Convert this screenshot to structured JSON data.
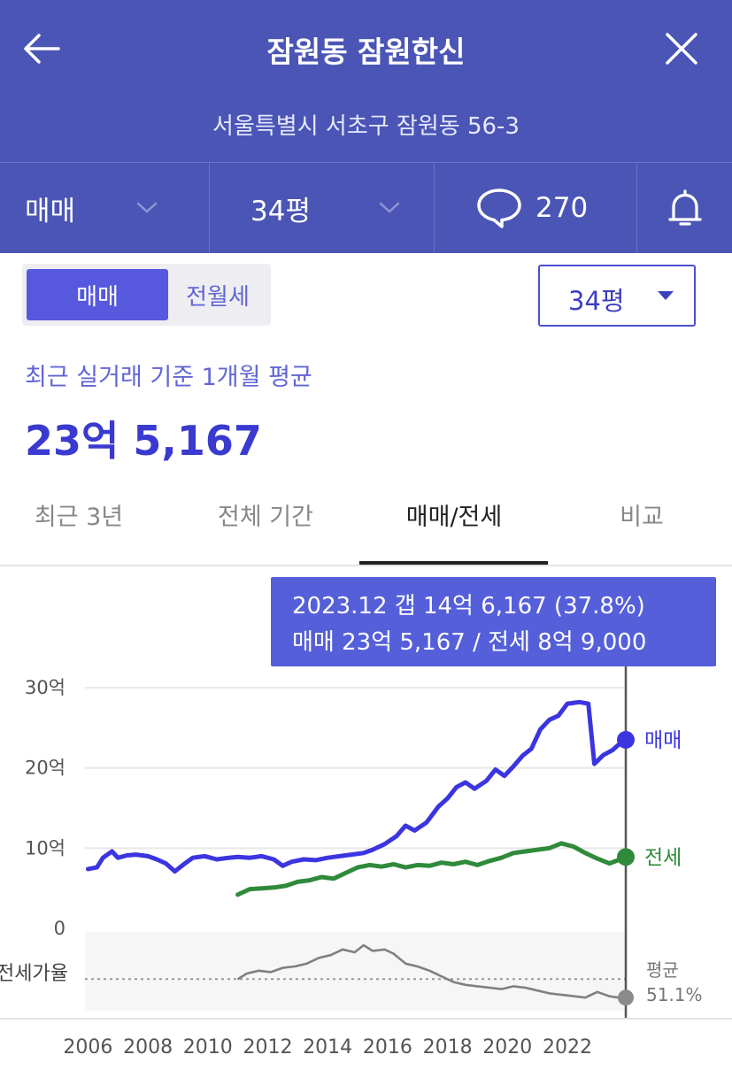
{
  "header": {
    "title": "잠원동 잠원한신",
    "address": "서울특별시 서초구 잠원동 56-3"
  },
  "filters": {
    "deal_type": "매매",
    "size": "34평",
    "comment_count": "270"
  },
  "segment": {
    "options": [
      "매매",
      "전월세"
    ],
    "selected": "매매"
  },
  "size_select": {
    "value": "34평"
  },
  "summary": {
    "label": "최근 실거래 기준 1개월 평균",
    "value": "23억 5,167"
  },
  "tabs": [
    {
      "label": "최근 3년",
      "active": false
    },
    {
      "label": "전체 기간",
      "active": false
    },
    {
      "label": "매매/전세",
      "active": true
    },
    {
      "label": "비교",
      "active": false
    }
  ],
  "tooltip": {
    "line1": "2023.12  갭 14억 6,167 (37.8%)",
    "line2": "매매 23억 5,167 / 전세 8억 9,000"
  },
  "chart_data": {
    "type": "line",
    "y_ticks": [
      {
        "value": 30,
        "label": "30억"
      },
      {
        "value": 20,
        "label": "20억"
      },
      {
        "value": 10,
        "label": "10억"
      },
      {
        "value": 0,
        "label": "0"
      }
    ],
    "ylim": [
      0,
      30
    ],
    "x_ticks": [
      "2006",
      "2008",
      "2010",
      "2012",
      "2014",
      "2016",
      "2018",
      "2020",
      "2022"
    ],
    "xlim": [
      2005.9,
      2023.95
    ],
    "grid": true,
    "cursor_x": 2023.95,
    "series": [
      {
        "name": "매매",
        "color": "#3b35e0",
        "points": [
          [
            2006.0,
            7.4
          ],
          [
            2006.3,
            7.6
          ],
          [
            2006.5,
            8.8
          ],
          [
            2006.8,
            9.6
          ],
          [
            2007.0,
            8.8
          ],
          [
            2007.3,
            9.1
          ],
          [
            2007.6,
            9.2
          ],
          [
            2008.0,
            9.0
          ],
          [
            2008.3,
            8.6
          ],
          [
            2008.6,
            8.1
          ],
          [
            2008.9,
            7.1
          ],
          [
            2009.2,
            8.0
          ],
          [
            2009.5,
            8.8
          ],
          [
            2009.9,
            9.0
          ],
          [
            2010.3,
            8.6
          ],
          [
            2010.7,
            8.8
          ],
          [
            2011.0,
            8.9
          ],
          [
            2011.4,
            8.8
          ],
          [
            2011.8,
            9.0
          ],
          [
            2012.2,
            8.6
          ],
          [
            2012.5,
            7.8
          ],
          [
            2012.8,
            8.3
          ],
          [
            2013.2,
            8.6
          ],
          [
            2013.6,
            8.5
          ],
          [
            2014.0,
            8.8
          ],
          [
            2014.4,
            9.0
          ],
          [
            2014.8,
            9.2
          ],
          [
            2015.2,
            9.4
          ],
          [
            2015.5,
            9.8
          ],
          [
            2015.9,
            10.5
          ],
          [
            2016.3,
            11.5
          ],
          [
            2016.6,
            12.8
          ],
          [
            2016.9,
            12.2
          ],
          [
            2017.3,
            13.2
          ],
          [
            2017.7,
            15.2
          ],
          [
            2018.0,
            16.2
          ],
          [
            2018.3,
            17.6
          ],
          [
            2018.6,
            18.2
          ],
          [
            2018.9,
            17.4
          ],
          [
            2019.3,
            18.4
          ],
          [
            2019.6,
            19.8
          ],
          [
            2019.9,
            19.0
          ],
          [
            2020.2,
            20.2
          ],
          [
            2020.5,
            21.5
          ],
          [
            2020.8,
            22.4
          ],
          [
            2021.1,
            24.8
          ],
          [
            2021.4,
            26.0
          ],
          [
            2021.7,
            26.5
          ],
          [
            2022.0,
            28.0
          ],
          [
            2022.4,
            28.2
          ],
          [
            2022.7,
            28.0
          ],
          [
            2022.9,
            20.5
          ],
          [
            2023.2,
            21.6
          ],
          [
            2023.5,
            22.2
          ],
          [
            2023.8,
            23.2
          ],
          [
            2023.95,
            23.5
          ]
        ]
      },
      {
        "name": "전세",
        "color": "#2f8a3b",
        "points": [
          [
            2011.0,
            4.2
          ],
          [
            2011.4,
            4.9
          ],
          [
            2011.8,
            5.0
          ],
          [
            2012.2,
            5.1
          ],
          [
            2012.6,
            5.3
          ],
          [
            2013.0,
            5.8
          ],
          [
            2013.4,
            6.0
          ],
          [
            2013.8,
            6.4
          ],
          [
            2014.2,
            6.2
          ],
          [
            2014.6,
            6.9
          ],
          [
            2015.0,
            7.6
          ],
          [
            2015.4,
            7.9
          ],
          [
            2015.8,
            7.7
          ],
          [
            2016.2,
            8.0
          ],
          [
            2016.6,
            7.6
          ],
          [
            2017.0,
            7.9
          ],
          [
            2017.4,
            7.8
          ],
          [
            2017.8,
            8.2
          ],
          [
            2018.2,
            8.0
          ],
          [
            2018.6,
            8.3
          ],
          [
            2019.0,
            7.9
          ],
          [
            2019.4,
            8.4
          ],
          [
            2019.8,
            8.8
          ],
          [
            2020.2,
            9.4
          ],
          [
            2020.6,
            9.6
          ],
          [
            2021.0,
            9.8
          ],
          [
            2021.4,
            10.0
          ],
          [
            2021.8,
            10.6
          ],
          [
            2022.2,
            10.2
          ],
          [
            2022.6,
            9.4
          ],
          [
            2023.0,
            8.7
          ],
          [
            2023.4,
            8.1
          ],
          [
            2023.7,
            8.5
          ],
          [
            2023.95,
            8.9
          ]
        ]
      }
    ],
    "ratio": {
      "label": "전세가율",
      "avg_label": "평균",
      "avg_value": "51.1%",
      "avg_ratio": 51.1,
      "range": [
        30,
        80
      ],
      "color": "#808080",
      "points": [
        [
          2011.0,
          51
        ],
        [
          2011.3,
          55
        ],
        [
          2011.7,
          57
        ],
        [
          2012.1,
          56
        ],
        [
          2012.5,
          59
        ],
        [
          2012.9,
          60
        ],
        [
          2013.3,
          62
        ],
        [
          2013.7,
          66
        ],
        [
          2014.1,
          68
        ],
        [
          2014.5,
          72
        ],
        [
          2014.9,
          70
        ],
        [
          2015.2,
          75
        ],
        [
          2015.5,
          71
        ],
        [
          2015.9,
          72
        ],
        [
          2016.2,
          69
        ],
        [
          2016.6,
          62
        ],
        [
          2017.0,
          60
        ],
        [
          2017.4,
          57
        ],
        [
          2017.8,
          53
        ],
        [
          2018.2,
          49
        ],
        [
          2018.6,
          47
        ],
        [
          2019.0,
          46
        ],
        [
          2019.4,
          45
        ],
        [
          2019.8,
          44
        ],
        [
          2020.2,
          46
        ],
        [
          2020.6,
          45
        ],
        [
          2021.0,
          43
        ],
        [
          2021.4,
          41
        ],
        [
          2021.8,
          40
        ],
        [
          2022.2,
          39
        ],
        [
          2022.6,
          38
        ],
        [
          2023.0,
          42
        ],
        [
          2023.4,
          39
        ],
        [
          2023.7,
          38
        ],
        [
          2023.95,
          38
        ]
      ]
    }
  }
}
